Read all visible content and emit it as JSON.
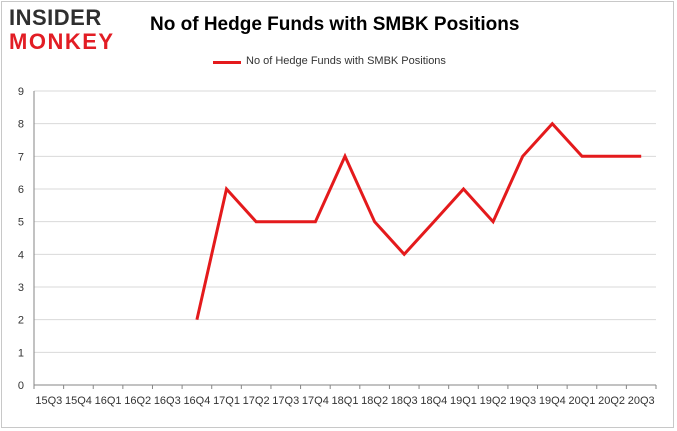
{
  "logo": {
    "line1": "INSIDER",
    "line2": "MONKEY"
  },
  "chart_data": {
    "type": "line",
    "title": "No of Hedge Funds with SMBK Positions",
    "xlabel": "",
    "ylabel": "",
    "categories": [
      "15Q3",
      "15Q4",
      "16Q1",
      "16Q2",
      "16Q3",
      "16Q4",
      "17Q1",
      "17Q2",
      "17Q3",
      "17Q4",
      "18Q1",
      "18Q2",
      "18Q3",
      "18Q4",
      "19Q1",
      "19Q2",
      "19Q3",
      "19Q4",
      "20Q1",
      "20Q2",
      "20Q3"
    ],
    "series": [
      {
        "name": "No of Hedge Funds with SMBK Positions",
        "values": [
          null,
          null,
          null,
          null,
          null,
          2,
          6,
          5,
          5,
          5,
          7,
          5,
          4,
          5,
          6,
          5,
          7,
          8,
          7,
          7,
          7
        ]
      }
    ],
    "ylim": [
      0,
      9
    ],
    "yticks": [
      0,
      1,
      2,
      3,
      4,
      5,
      6,
      7,
      8,
      9
    ],
    "grid": true,
    "legend": "top-center",
    "colors": {
      "line": "#e41a1c",
      "grid": "#d9d9d9",
      "axis": "#868686"
    }
  }
}
